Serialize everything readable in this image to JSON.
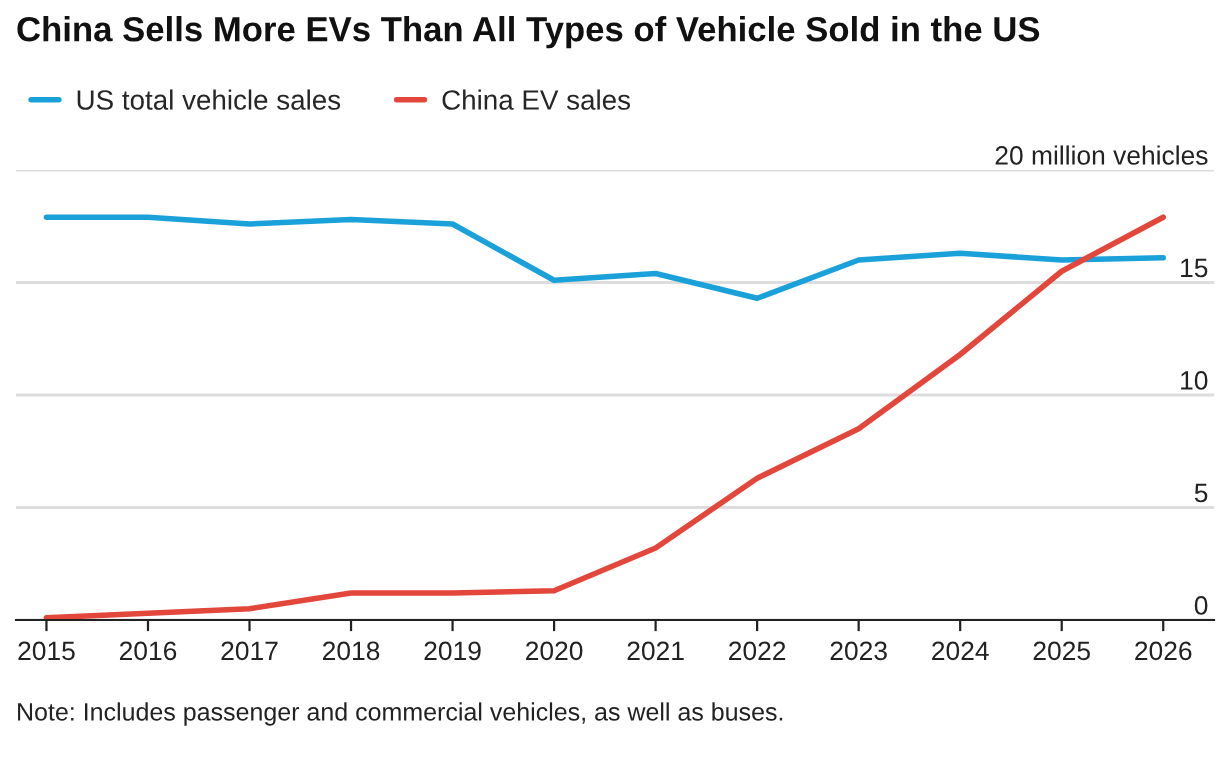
{
  "chart_data": {
    "type": "line",
    "title": "China Sells More EVs Than All Types of Vehicle Sold in the US",
    "x": [
      2015,
      2016,
      2017,
      2018,
      2019,
      2020,
      2021,
      2022,
      2023,
      2024,
      2025,
      2026
    ],
    "series": [
      {
        "name": "US total vehicle sales",
        "color": "#1ba1d9",
        "values": [
          17.9,
          17.9,
          17.6,
          17.8,
          17.6,
          15.1,
          15.4,
          14.3,
          16.0,
          16.3,
          16.0,
          16.1
        ]
      },
      {
        "name": "China EV sales",
        "color": "#e3463b",
        "values": [
          0.1,
          0.3,
          0.5,
          1.2,
          1.2,
          1.3,
          3.2,
          6.3,
          8.5,
          11.8,
          15.5,
          17.9
        ]
      }
    ],
    "xlim": [
      2014.7,
      2026.5
    ],
    "xticks": [
      2015,
      2016,
      2017,
      2018,
      2019,
      2020,
      2021,
      2022,
      2023,
      2024,
      2025,
      2026
    ],
    "ylim": [
      0,
      20
    ],
    "yticks": [
      0,
      5,
      10,
      15,
      {
        "value": 20,
        "label": "20 million vehicles"
      }
    ],
    "grid": "y",
    "legend": "top left",
    "marker": "none",
    "line_style": "solid",
    "annotations": [
      "Note: Includes passenger and commercial vehicles, as well as buses."
    ]
  }
}
